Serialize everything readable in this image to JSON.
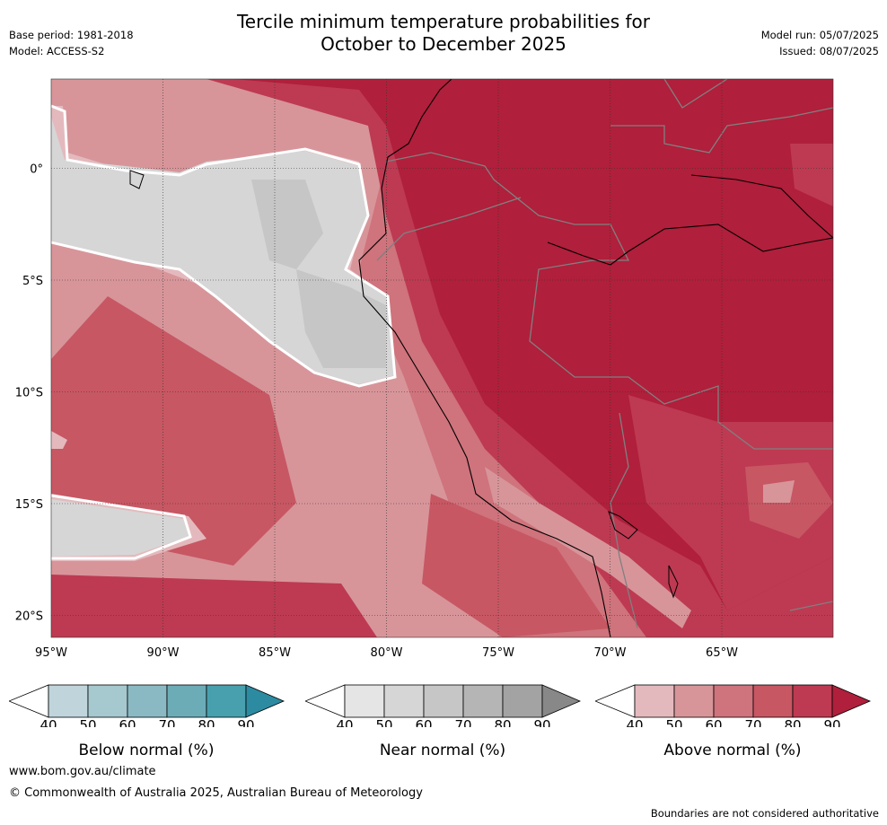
{
  "header": {
    "title_line1": "Tercile minimum temperature probabilities for",
    "title_line2": "October to December 2025",
    "base_period": "Base period: 1981-2018",
    "model": "Model: ACCESS-S2",
    "model_run": "Model run: 05/07/2025",
    "issued": "Issued: 08/07/2025"
  },
  "map": {
    "lon_labels": [
      "95°W",
      "90°W",
      "85°W",
      "80°W",
      "75°W",
      "70°W",
      "65°W"
    ],
    "lat_labels": [
      "0°",
      "5°S",
      "10°S",
      "15°S",
      "20°S"
    ],
    "colors": {
      "above_90": "#b01f3b",
      "above_80": "#bd3a52",
      "above_70": "#c75763",
      "above_60": "#cf737c",
      "above_50": "#d7959a",
      "above_40": "#e4b9bd",
      "near_50": "#d6d6d6",
      "near_60": "#c6c6c6",
      "land_border": "#808080",
      "coast": "#000000"
    }
  },
  "colorbars": [
    {
      "label": "Below normal (%)",
      "ticks": [
        "40",
        "50",
        "60",
        "70",
        "80",
        "90"
      ],
      "colors": [
        "#ffffff",
        "#bfd5db",
        "#a6c8cf",
        "#8ab9c3",
        "#6cacb7",
        "#48a0ae",
        "#2c8ba0"
      ]
    },
    {
      "label": "Near normal (%)",
      "ticks": [
        "40",
        "50",
        "60",
        "70",
        "80",
        "90"
      ],
      "colors": [
        "#ffffff",
        "#e5e5e5",
        "#d6d6d6",
        "#c6c6c6",
        "#b5b5b5",
        "#a3a3a3",
        "#888888"
      ]
    },
    {
      "label": "Above normal (%)",
      "ticks": [
        "40",
        "50",
        "60",
        "70",
        "80",
        "90"
      ],
      "colors": [
        "#ffffff",
        "#e4b9bd",
        "#d7959a",
        "#cf737c",
        "#c75763",
        "#bd3a52",
        "#b01f3b"
      ]
    }
  ],
  "footer": {
    "website": "www.bom.gov.au/climate",
    "copyright": "© Commonwealth of Australia 2025, Australian Bureau of Meteorology",
    "disclaimer": "Boundaries are not considered authoritative"
  }
}
